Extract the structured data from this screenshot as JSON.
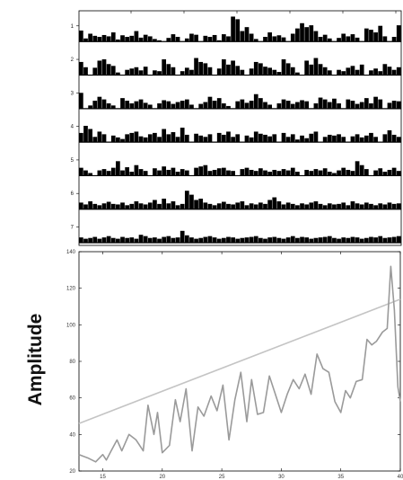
{
  "chart_data": [
    {
      "type": "bar",
      "title": "",
      "xlabel": "",
      "ylabel": "",
      "row_labels": [
        "1",
        "2",
        "3",
        "4",
        "5",
        "6",
        "7"
      ],
      "bars_per_row": 70,
      "colors": {
        "bar": "#000000",
        "axis": "#000000"
      },
      "rows": [
        {
          "label": "1",
          "values": [
            0.42,
            0.12,
            0.3,
            0.22,
            0.18,
            0.25,
            0.2,
            0.35,
            0.08,
            0.24,
            0.18,
            0.22,
            0.4,
            0.15,
            0.26,
            0.2,
            0.1,
            0.05,
            0.0,
            0.14,
            0.28,
            0.18,
            0.0,
            0.12,
            0.3,
            0.26,
            0.0,
            0.22,
            0.18,
            0.25,
            0.05,
            0.28,
            0.2,
            0.95,
            0.85,
            0.4,
            0.55,
            0.3,
            0.1,
            0.0,
            0.18,
            0.35,
            0.2,
            0.24,
            0.16,
            0.0,
            0.3,
            0.5,
            0.7,
            0.55,
            0.62,
            0.4,
            0.18,
            0.26,
            0.12,
            0.0,
            0.14,
            0.3,
            0.2,
            0.28,
            0.15,
            0.0,
            0.5,
            0.45,
            0.35,
            0.6,
            0.2,
            0.0,
            0.18,
            0.62
          ]
        },
        {
          "label": "2",
          "values": [
            0.5,
            0.3,
            0.0,
            0.28,
            0.55,
            0.6,
            0.42,
            0.35,
            0.1,
            0.0,
            0.2,
            0.25,
            0.3,
            0.18,
            0.32,
            0.0,
            0.18,
            0.15,
            0.6,
            0.42,
            0.3,
            0.0,
            0.15,
            0.28,
            0.2,
            0.65,
            0.5,
            0.45,
            0.3,
            0.0,
            0.25,
            0.6,
            0.4,
            0.55,
            0.35,
            0.2,
            0.0,
            0.25,
            0.5,
            0.45,
            0.32,
            0.28,
            0.2,
            0.12,
            0.6,
            0.45,
            0.3,
            0.1,
            0.0,
            0.55,
            0.4,
            0.65,
            0.42,
            0.3,
            0.18,
            0.0,
            0.2,
            0.15,
            0.28,
            0.35,
            0.2,
            0.4,
            0.0,
            0.18,
            0.25,
            0.15,
            0.42,
            0.32,
            0.2,
            0.3
          ]
        },
        {
          "label": "3",
          "values": [
            0.6,
            0.0,
            0.12,
            0.3,
            0.45,
            0.35,
            0.2,
            0.12,
            0.0,
            0.4,
            0.3,
            0.2,
            0.28,
            0.35,
            0.22,
            0.15,
            0.0,
            0.2,
            0.32,
            0.28,
            0.18,
            0.25,
            0.3,
            0.35,
            0.15,
            0.0,
            0.18,
            0.25,
            0.45,
            0.3,
            0.4,
            0.2,
            0.1,
            0.0,
            0.28,
            0.35,
            0.22,
            0.3,
            0.55,
            0.4,
            0.25,
            0.15,
            0.0,
            0.2,
            0.35,
            0.3,
            0.18,
            0.25,
            0.32,
            0.28,
            0.0,
            0.2,
            0.42,
            0.35,
            0.25,
            0.38,
            0.2,
            0.0,
            0.35,
            0.3,
            0.18,
            0.25,
            0.4,
            0.2,
            0.45,
            0.35,
            0.0,
            0.22,
            0.3,
            0.28
          ]
        },
        {
          "label": "4",
          "values": [
            0.35,
            0.62,
            0.5,
            0.2,
            0.4,
            0.3,
            0.0,
            0.25,
            0.18,
            0.12,
            0.3,
            0.35,
            0.4,
            0.22,
            0.18,
            0.3,
            0.35,
            0.2,
            0.5,
            0.3,
            0.38,
            0.2,
            0.55,
            0.28,
            0.0,
            0.32,
            0.25,
            0.2,
            0.3,
            0.0,
            0.35,
            0.28,
            0.4,
            0.2,
            0.3,
            0.0,
            0.25,
            0.18,
            0.4,
            0.32,
            0.28,
            0.22,
            0.3,
            0.0,
            0.35,
            0.2,
            0.3,
            0.1,
            0.25,
            0.15,
            0.32,
            0.4,
            0.0,
            0.2,
            0.28,
            0.25,
            0.3,
            0.2,
            0.0,
            0.22,
            0.3,
            0.18,
            0.25,
            0.35,
            0.2,
            0.0,
            0.3,
            0.45,
            0.28,
            0.2
          ]
        },
        {
          "label": "5",
          "values": [
            0.3,
            0.2,
            0.1,
            0.0,
            0.2,
            0.25,
            0.18,
            0.3,
            0.55,
            0.2,
            0.32,
            0.15,
            0.4,
            0.25,
            0.18,
            0.0,
            0.28,
            0.2,
            0.35,
            0.22,
            0.3,
            0.15,
            0.25,
            0.2,
            0.0,
            0.3,
            0.35,
            0.4,
            0.18,
            0.22,
            0.28,
            0.3,
            0.2,
            0.18,
            0.0,
            0.25,
            0.3,
            0.22,
            0.18,
            0.28,
            0.2,
            0.15,
            0.22,
            0.18,
            0.25,
            0.2,
            0.3,
            0.15,
            0.0,
            0.22,
            0.18,
            0.25,
            0.2,
            0.28,
            0.15,
            0.1,
            0.2,
            0.3,
            0.22,
            0.18,
            0.55,
            0.4,
            0.25,
            0.0,
            0.2,
            0.28,
            0.15,
            0.22,
            0.3,
            0.18
          ]
        },
        {
          "label": "6",
          "values": [
            0.25,
            0.18,
            0.3,
            0.2,
            0.15,
            0.22,
            0.28,
            0.2,
            0.18,
            0.25,
            0.15,
            0.2,
            0.3,
            0.22,
            0.18,
            0.25,
            0.35,
            0.2,
            0.4,
            0.22,
            0.3,
            0.15,
            0.2,
            0.7,
            0.55,
            0.35,
            0.4,
            0.25,
            0.2,
            0.15,
            0.22,
            0.28,
            0.2,
            0.18,
            0.25,
            0.3,
            0.15,
            0.22,
            0.18,
            0.25,
            0.2,
            0.35,
            0.45,
            0.3,
            0.18,
            0.25,
            0.2,
            0.15,
            0.22,
            0.18,
            0.25,
            0.3,
            0.2,
            0.15,
            0.22,
            0.18,
            0.2,
            0.25,
            0.15,
            0.3,
            0.22,
            0.18,
            0.25,
            0.2,
            0.15,
            0.22,
            0.18,
            0.25,
            0.2,
            0.22
          ]
        },
        {
          "label": "7",
          "values": [
            0.2,
            0.15,
            0.18,
            0.22,
            0.15,
            0.2,
            0.25,
            0.18,
            0.15,
            0.22,
            0.18,
            0.2,
            0.15,
            0.3,
            0.25,
            0.18,
            0.2,
            0.15,
            0.22,
            0.25,
            0.18,
            0.2,
            0.45,
            0.28,
            0.2,
            0.15,
            0.18,
            0.22,
            0.25,
            0.2,
            0.15,
            0.18,
            0.22,
            0.2,
            0.15,
            0.18,
            0.2,
            0.22,
            0.25,
            0.18,
            0.15,
            0.2,
            0.22,
            0.18,
            0.15,
            0.2,
            0.25,
            0.18,
            0.22,
            0.2,
            0.15,
            0.18,
            0.2,
            0.22,
            0.25,
            0.18,
            0.15,
            0.2,
            0.18,
            0.22,
            0.2,
            0.15,
            0.18,
            0.22,
            0.2,
            0.25,
            0.18,
            0.2,
            0.22,
            0.25
          ]
        }
      ]
    },
    {
      "type": "line",
      "title": "",
      "xlabel": "",
      "ylabel": "Amplitude",
      "xlim": [
        13,
        40
      ],
      "ylim": [
        20,
        140
      ],
      "xticks": [
        15,
        20,
        25,
        30,
        35,
        40
      ],
      "yticks": [
        20,
        40,
        60,
        80,
        100,
        120,
        140
      ],
      "grid": false,
      "colors": {
        "series": "#9a9a9a",
        "trend": "#c4c4c4",
        "axis": "#000000"
      },
      "series": [
        {
          "x": [
            13.0,
            13.8,
            14.4,
            15.0,
            15.3,
            15.7,
            16.2,
            16.6,
            17.2,
            17.8,
            18.4,
            18.8,
            19.3,
            19.6,
            20.0,
            20.6,
            21.1,
            21.5,
            22.0,
            22.5,
            23.0,
            23.5,
            24.1,
            24.6,
            25.1,
            25.6,
            26.1,
            26.6,
            27.1,
            27.5,
            28.0,
            28.5,
            29.0,
            29.5,
            30.0,
            30.5,
            31.0,
            31.5,
            32.0,
            32.5,
            33.0,
            33.5,
            34.0,
            34.5,
            35.0,
            35.4,
            35.8,
            36.3,
            36.8,
            37.2,
            37.6,
            38.0,
            38.5,
            38.9,
            39.2,
            39.5,
            39.8,
            40.0
          ],
          "y": [
            29,
            27,
            25,
            29,
            26,
            31,
            37,
            31,
            40,
            37,
            31,
            56,
            40,
            52,
            30,
            34,
            59,
            47,
            65,
            31,
            55,
            50,
            61,
            53,
            67,
            37,
            59,
            74,
            47,
            70,
            51,
            52,
            72,
            62,
            52,
            62,
            70,
            65,
            73,
            62,
            84,
            76,
            74,
            58,
            52,
            64,
            60,
            69,
            70,
            92,
            89,
            91,
            96,
            98,
            132,
            108,
            66,
            58
          ]
        },
        {
          "x": [
            13,
            40
          ],
          "y": [
            46,
            114
          ]
        }
      ]
    }
  ]
}
